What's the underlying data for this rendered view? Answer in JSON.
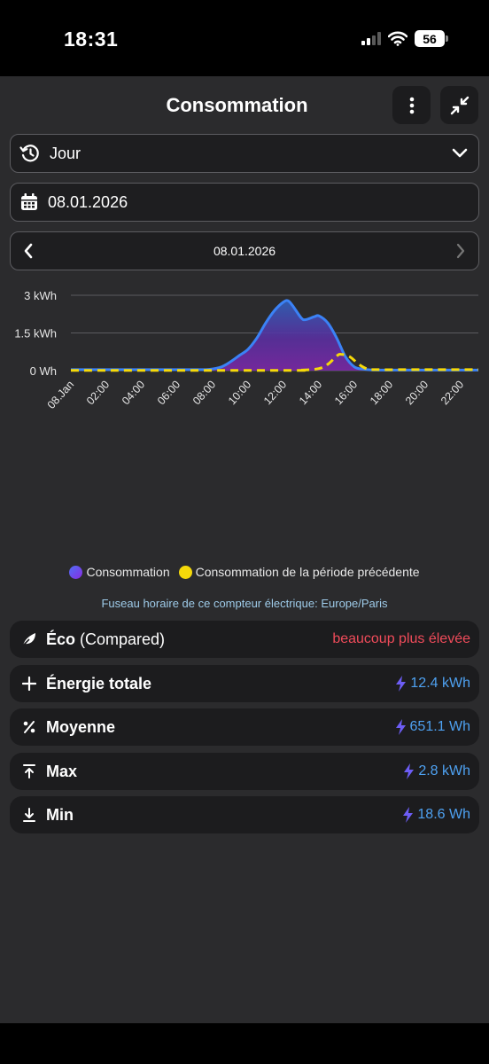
{
  "status_bar": {
    "time": "18:31",
    "battery": "56"
  },
  "header": {
    "title": "Consommation"
  },
  "period_select": {
    "value": "Jour"
  },
  "date_input": {
    "value": "08.01.2026"
  },
  "date_nav": {
    "label": "08.01.2026"
  },
  "chart_data": {
    "type": "area",
    "x_tick_labels": [
      "08.Jan",
      "02:00",
      "04:00",
      "06:00",
      "08:00",
      "10:00",
      "12:00",
      "14:00",
      "16:00",
      "18:00",
      "20:00",
      "22:00"
    ],
    "y_tick_labels": [
      "3 kWh",
      "1.5 kWh",
      "0 Wh"
    ],
    "ylim": [
      0,
      3
    ],
    "grid": true,
    "legend_position": "bottom",
    "series": [
      {
        "name": "Consommation",
        "color": "#3b82f6",
        "style": "solid-filled",
        "points": [
          [
            0,
            0.04
          ],
          [
            1,
            0.04
          ],
          [
            2,
            0.04
          ],
          [
            3,
            0.04
          ],
          [
            4,
            0.04
          ],
          [
            5,
            0.04
          ],
          [
            6,
            0.04
          ],
          [
            7,
            0.04
          ],
          [
            7.8,
            0.05
          ],
          [
            8.5,
            0.15
          ],
          [
            9,
            0.35
          ],
          [
            9.5,
            0.6
          ],
          [
            10,
            0.85
          ],
          [
            10.5,
            1.3
          ],
          [
            11,
            1.9
          ],
          [
            11.5,
            2.4
          ],
          [
            12,
            2.73
          ],
          [
            12.25,
            2.78
          ],
          [
            12.5,
            2.6
          ],
          [
            13,
            2.1
          ],
          [
            13.25,
            2.03
          ],
          [
            13.75,
            2.15
          ],
          [
            14,
            2.18
          ],
          [
            14.5,
            1.9
          ],
          [
            15,
            1.3
          ],
          [
            15.5,
            0.55
          ],
          [
            16,
            0.15
          ],
          [
            16.5,
            0.06
          ],
          [
            17,
            0.03
          ],
          [
            18,
            0.02
          ],
          [
            20,
            0.02
          ],
          [
            22,
            0.02
          ],
          [
            23,
            0.02
          ]
        ]
      },
      {
        "name": "Consommation de la période précédente",
        "color": "#f5d90a",
        "style": "dashed",
        "points": [
          [
            0,
            0.01
          ],
          [
            12,
            0.01
          ],
          [
            13,
            0.02
          ],
          [
            14,
            0.08
          ],
          [
            14.5,
            0.25
          ],
          [
            15,
            0.58
          ],
          [
            15.25,
            0.65
          ],
          [
            15.75,
            0.55
          ],
          [
            16.25,
            0.25
          ],
          [
            16.75,
            0.06
          ],
          [
            17.25,
            0.04
          ],
          [
            20,
            0.04
          ],
          [
            23,
            0.04
          ]
        ]
      }
    ]
  },
  "timezone_note": "Fuseau horaire de ce compteur électrique: Europe/Paris",
  "stats": {
    "eco": {
      "label": "Éco",
      "sub": "(Compared)",
      "value": "beaucoup plus élevée",
      "icon": "leaf-icon",
      "color": "#ef4b5a"
    },
    "total": {
      "label": "Énergie totale",
      "value": "12.4 kWh",
      "icon": "plus-icon"
    },
    "average": {
      "label": "Moyenne",
      "value": "651.1 Wh",
      "icon": "percent-icon"
    },
    "max": {
      "label": "Max",
      "value": "2.8 kWh",
      "icon": "arrow-up-bar-icon"
    },
    "min": {
      "label": "Min",
      "value": "18.6 Wh",
      "icon": "arrow-down-bar-icon"
    }
  },
  "colors": {
    "value_blue": "#4ea1f1",
    "bolt": "#6d5df5",
    "background": "#2b2b2d",
    "card": "#1c1c1e"
  }
}
